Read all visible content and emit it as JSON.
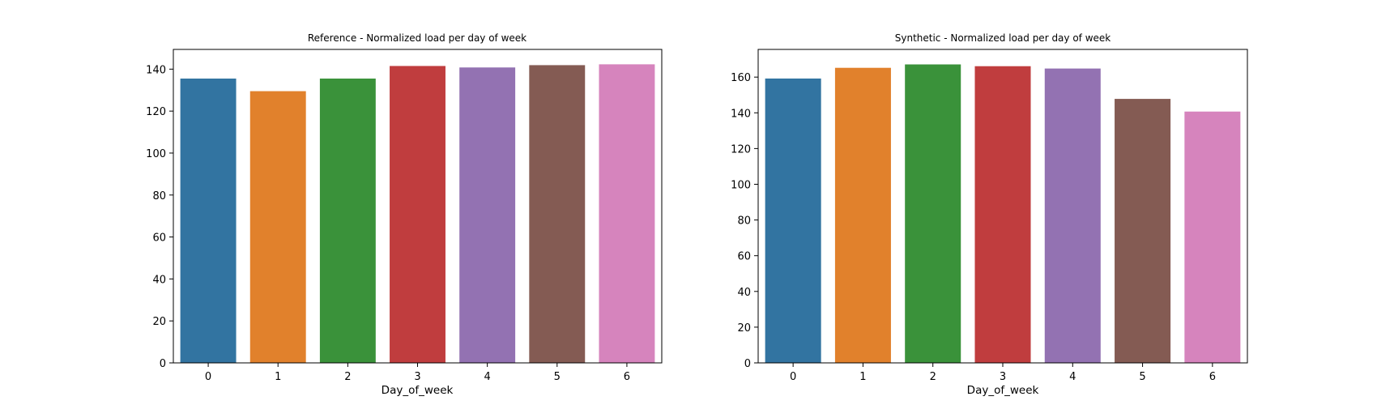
{
  "chart_data": [
    {
      "type": "bar",
      "title": "Reference - Normalized load per day of week",
      "xlabel": "Day_of_week",
      "ylabel": "",
      "categories": [
        "0",
        "1",
        "2",
        "3",
        "4",
        "5",
        "6"
      ],
      "values": [
        135.5,
        129.5,
        135.5,
        141.5,
        140.8,
        141.9,
        142.3
      ],
      "ylim": [
        0,
        149.4
      ],
      "yticks": [
        0,
        20,
        40,
        60,
        80,
        100,
        120,
        140
      ],
      "colors": [
        "#3274a1",
        "#e1812c",
        "#3a923a",
        "#c03d3e",
        "#9372b2",
        "#845b53",
        "#d684bd"
      ],
      "grid": false,
      "legend": "none"
    },
    {
      "type": "bar",
      "title": "Synthetic - Normalized load per day of week",
      "xlabel": "Day_of_week",
      "ylabel": "",
      "categories": [
        "0",
        "1",
        "2",
        "3",
        "4",
        "5",
        "6"
      ],
      "values": [
        159.2,
        165.2,
        167.1,
        166.1,
        164.8,
        147.8,
        140.7
      ],
      "ylim": [
        0,
        175.5
      ],
      "yticks": [
        0,
        20,
        40,
        60,
        80,
        100,
        120,
        140,
        160
      ],
      "colors": [
        "#3274a1",
        "#e1812c",
        "#3a923a",
        "#c03d3e",
        "#9372b2",
        "#845b53",
        "#d684bd"
      ],
      "grid": false,
      "legend": "none"
    }
  ]
}
